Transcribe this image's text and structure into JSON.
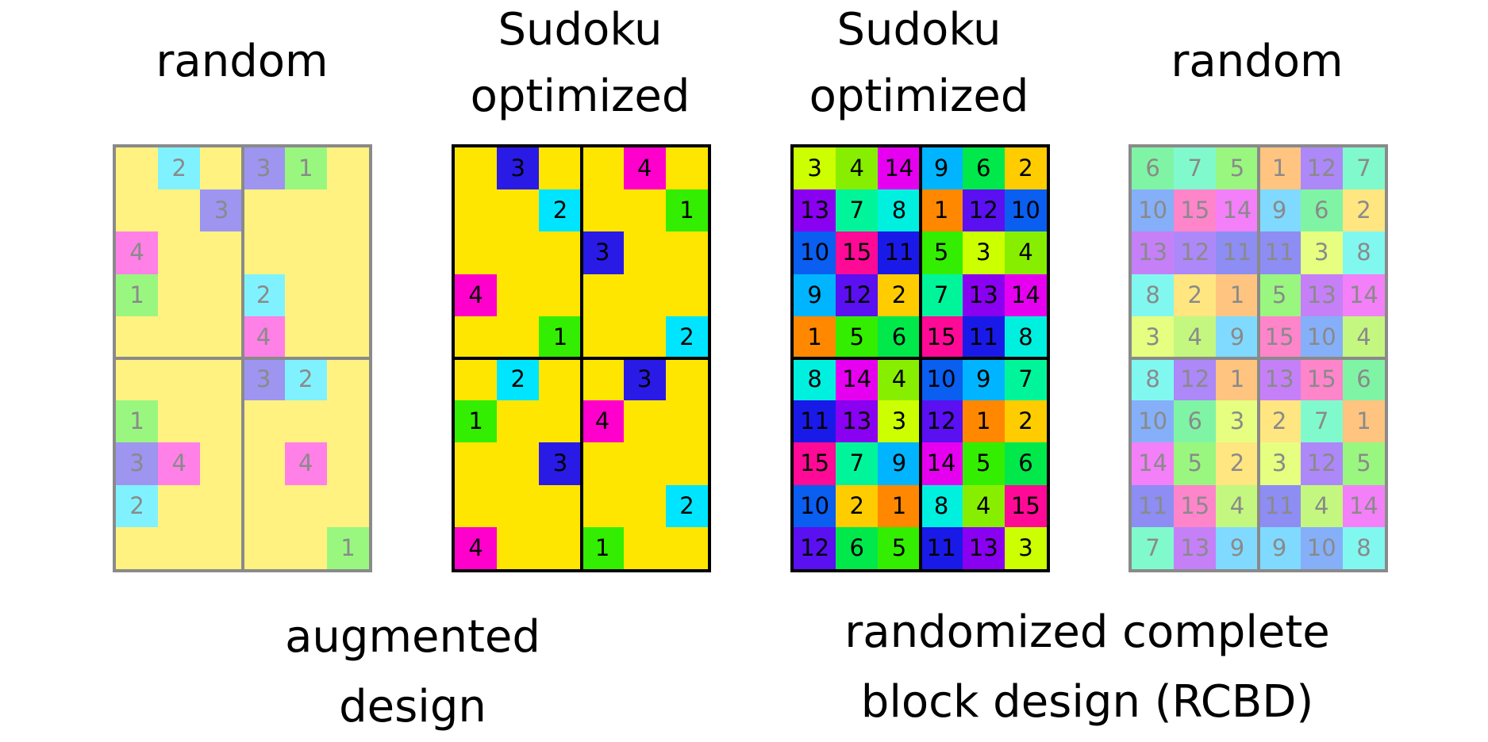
{
  "panels": [
    {
      "title": [
        "random"
      ],
      "faded": true,
      "base_color": "#fff280",
      "text_color": "#8a8a8a",
      "border_color": "#8a8a8a",
      "cells": [
        [
          "",
          "2",
          "",
          "3",
          "1",
          ""
        ],
        [
          "",
          "",
          "3",
          "",
          "",
          ""
        ],
        [
          "4",
          "",
          "",
          "",
          "",
          ""
        ],
        [
          "1",
          "",
          "",
          "2",
          "",
          ""
        ],
        [
          "",
          "",
          "",
          "4",
          "",
          ""
        ],
        [
          "",
          "",
          "",
          "3",
          "2",
          ""
        ],
        [
          "1",
          "",
          "",
          "",
          "",
          ""
        ],
        [
          "3",
          "4",
          "",
          "",
          "4",
          ""
        ],
        [
          "2",
          "",
          "",
          "",
          "",
          ""
        ],
        [
          "",
          "",
          "",
          "",
          "",
          "1"
        ]
      ]
    },
    {
      "title": [
        "Sudoku",
        "optimized"
      ],
      "faded": false,
      "base_color": "#ffe600",
      "text_color": "#000000",
      "border_color": "#000000",
      "cells": [
        [
          "",
          "3",
          "",
          "",
          "4",
          ""
        ],
        [
          "",
          "",
          "2",
          "",
          "",
          "1"
        ],
        [
          "",
          "",
          "",
          "3",
          "",
          ""
        ],
        [
          "4",
          "",
          "",
          "",
          "",
          ""
        ],
        [
          "",
          "",
          "1",
          "",
          "",
          "2"
        ],
        [
          "",
          "2",
          "",
          "",
          "3",
          ""
        ],
        [
          "1",
          "",
          "",
          "4",
          "",
          ""
        ],
        [
          "",
          "",
          "3",
          "",
          "",
          ""
        ],
        [
          "",
          "",
          "",
          "",
          "",
          "2"
        ],
        [
          "4",
          "",
          "",
          "1",
          "",
          ""
        ]
      ]
    },
    {
      "title": [
        "Sudoku",
        "optimized"
      ],
      "faded": false,
      "base_color": "#ffffff",
      "text_color": "#000000",
      "border_color": "#000000",
      "cells": [
        [
          "3",
          "4",
          "14",
          "9",
          "6",
          "2"
        ],
        [
          "13",
          "7",
          "8",
          "1",
          "12",
          "10"
        ],
        [
          "10",
          "15",
          "11",
          "5",
          "3",
          "4"
        ],
        [
          "9",
          "12",
          "2",
          "7",
          "13",
          "14"
        ],
        [
          "1",
          "5",
          "6",
          "15",
          "11",
          "8"
        ],
        [
          "8",
          "14",
          "4",
          "10",
          "9",
          "7"
        ],
        [
          "11",
          "13",
          "3",
          "12",
          "1",
          "2"
        ],
        [
          "15",
          "7",
          "9",
          "14",
          "5",
          "6"
        ],
        [
          "10",
          "2",
          "1",
          "8",
          "4",
          "15"
        ],
        [
          "12",
          "6",
          "5",
          "11",
          "13",
          "3"
        ]
      ]
    },
    {
      "title": [
        "random"
      ],
      "faded": true,
      "base_color": "#ffffff",
      "text_color": "#8a8a8a",
      "border_color": "#8a8a8a",
      "cells": [
        [
          "6",
          "7",
          "5",
          "1",
          "12",
          "7"
        ],
        [
          "10",
          "15",
          "14",
          "9",
          "6",
          "2"
        ],
        [
          "13",
          "12",
          "11",
          "11",
          "3",
          "8"
        ],
        [
          "8",
          "2",
          "1",
          "5",
          "13",
          "14"
        ],
        [
          "3",
          "4",
          "9",
          "15",
          "10",
          "4"
        ],
        [
          "8",
          "12",
          "1",
          "13",
          "15",
          "6"
        ],
        [
          "10",
          "6",
          "3",
          "2",
          "7",
          "1"
        ],
        [
          "14",
          "5",
          "2",
          "3",
          "12",
          "5"
        ],
        [
          "11",
          "15",
          "4",
          "11",
          "4",
          "14"
        ],
        [
          "7",
          "13",
          "9",
          "9",
          "10",
          "8"
        ]
      ]
    }
  ],
  "entry_colors": {
    "1": "#00e600",
    "2": "#00e5ff",
    "3": "#2a1ae6",
    "4": "#ff00cc",
    "5": "#33ee00",
    "6": "#00e84a",
    "7": "#00f59a",
    "8": "#00f0e0",
    "9": "#00b4ff",
    "10": "#0a5ef0",
    "11": "#1a1ae8",
    "12": "#5a10f0",
    "13": "#8a00f0",
    "14": "#e600f0",
    "15": "#ff0a96"
  },
  "rcbd_overrides": {
    "1": "#ff8800",
    "2": "#ffcc00",
    "3": "#ccff00",
    "4": "#88ee00"
  },
  "captions": {
    "left": [
      "augmented",
      "design"
    ],
    "right": [
      "randomized complete",
      "block design (RCBD)"
    ]
  }
}
